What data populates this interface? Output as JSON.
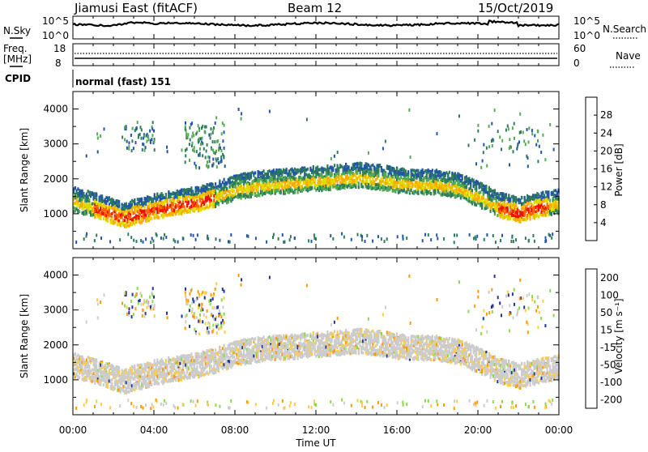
{
  "header": {
    "station": "Jiamusi East (fitACF)",
    "beam": "Beam 12",
    "date": "15/Oct/2019"
  },
  "side_labels": {
    "nsky": "N.Sky",
    "nsearch": "N.Search",
    "freq_line1": "Freq.",
    "freq_line2": "[MHz]",
    "nave": "Nave",
    "cpid": "CPID",
    "cpid_value": "normal (fast) 151"
  },
  "noise_axis": {
    "left_top": "10^5",
    "left_bottom": "10^0",
    "right_top": "10^5",
    "right_bottom": "10^0"
  },
  "freq_axis": {
    "left_ticks": [
      "18",
      "8"
    ],
    "right_ticks": [
      "60",
      "0"
    ]
  },
  "x_axis": {
    "label": "Time UT",
    "ticks": [
      "00:00",
      "04:00",
      "08:00",
      "12:00",
      "16:00",
      "20:00",
      "00:00"
    ]
  },
  "colors": {
    "power": [
      "#1a1aff",
      "#2255aa",
      "#2e7d5a",
      "#55aa55",
      "#dddd00",
      "#ffaa00",
      "#ff6600",
      "#ee1100"
    ],
    "velocity": [
      "#ff0000",
      "#ff5500",
      "#ff9900",
      "#ffcc44",
      "#cccccc",
      "#88dd44",
      "#2e7d5a",
      "#223399"
    ]
  },
  "chart_data": [
    {
      "type": "heatmap",
      "title": "Power",
      "ylabel": "Slant Range [km]",
      "xlabel": "Time UT",
      "x_ticks": [
        "00:00",
        "04:00",
        "08:00",
        "12:00",
        "16:00",
        "20:00",
        "00:00"
      ],
      "y_ticks": [
        "1000",
        "2000",
        "3000",
        "4000"
      ],
      "colorbar": {
        "label": "Power [dB]",
        "ticks": [
          "4",
          "8",
          "12",
          "16",
          "20",
          "24",
          "28"
        ]
      },
      "ridge_hours": [
        0,
        1,
        2,
        2.5,
        3,
        3.5,
        4,
        5,
        6,
        7,
        8,
        9,
        10,
        11,
        12,
        13,
        14,
        15,
        16,
        17,
        18,
        19,
        20,
        21,
        22,
        23,
        24
      ],
      "ridge_range_km": [
        1300,
        1150,
        950,
        850,
        950,
        1000,
        1100,
        1200,
        1300,
        1450,
        1650,
        1750,
        1800,
        1850,
        1900,
        1950,
        2000,
        1950,
        1850,
        1800,
        1800,
        1700,
        1450,
        1150,
        1000,
        1150,
        1250
      ]
    },
    {
      "type": "heatmap",
      "title": "Velocity",
      "ylabel": "Slant Range [km]",
      "xlabel": "Time UT",
      "x_ticks": [
        "00:00",
        "04:00",
        "08:00",
        "12:00",
        "16:00",
        "20:00",
        "00:00"
      ],
      "y_ticks": [
        "1000",
        "2000",
        "3000",
        "4000"
      ],
      "colorbar": {
        "label": "Velocity [m s⁻¹]",
        "ticks": [
          "-200",
          "-100",
          "-50",
          "-15",
          "15",
          "50",
          "100",
          "200"
        ]
      }
    }
  ]
}
